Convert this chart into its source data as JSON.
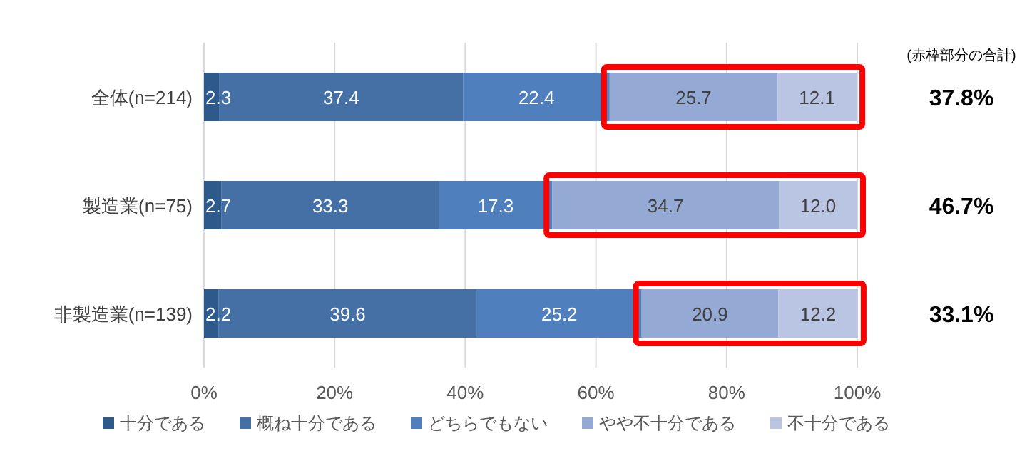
{
  "chart_data": {
    "type": "bar",
    "orientation": "horizontal",
    "stacked": true,
    "categories": [
      "全体(n=214)",
      "製造業(n=75)",
      "非製造業(n=139)"
    ],
    "series": [
      {
        "name": "十分である",
        "color": "#2e5a8b",
        "values": [
          2.3,
          2.7,
          2.2
        ],
        "value_labels": [
          "2.3",
          "2.7",
          "2.2"
        ]
      },
      {
        "name": "概ね十分である",
        "color": "#4470a5",
        "values": [
          37.4,
          33.3,
          39.6
        ],
        "value_labels": [
          "37.4",
          "33.3",
          "39.6"
        ]
      },
      {
        "name": "どちらでもない",
        "color": "#4f80bd",
        "values": [
          22.4,
          17.3,
          25.2
        ],
        "value_labels": [
          "22.4",
          "17.3",
          "25.2"
        ]
      },
      {
        "name": "やや不十分である",
        "color": "#94aad4",
        "values": [
          25.7,
          34.7,
          20.9
        ],
        "value_labels": [
          "25.7",
          "34.7",
          "20.9"
        ]
      },
      {
        "name": "不十分である",
        "color": "#b9c5e2",
        "values": [
          12.1,
          12.0,
          12.2
        ],
        "value_labels": [
          "12.1",
          "12.0",
          "12.2"
        ]
      }
    ],
    "xlim": [
      0,
      100
    ],
    "xticks": [
      {
        "value": 0,
        "label": "0%"
      },
      {
        "value": 20,
        "label": "20%"
      },
      {
        "value": 40,
        "label": "40%"
      },
      {
        "value": 60,
        "label": "60%"
      },
      {
        "value": 80,
        "label": "80%"
      },
      {
        "value": 100,
        "label": "100%"
      }
    ],
    "grid": "x",
    "legend": "bottom",
    "annotations": [
      "(赤枠部分の合計)",
      "37.8%",
      "46.7%",
      "33.1%"
    ]
  }
}
